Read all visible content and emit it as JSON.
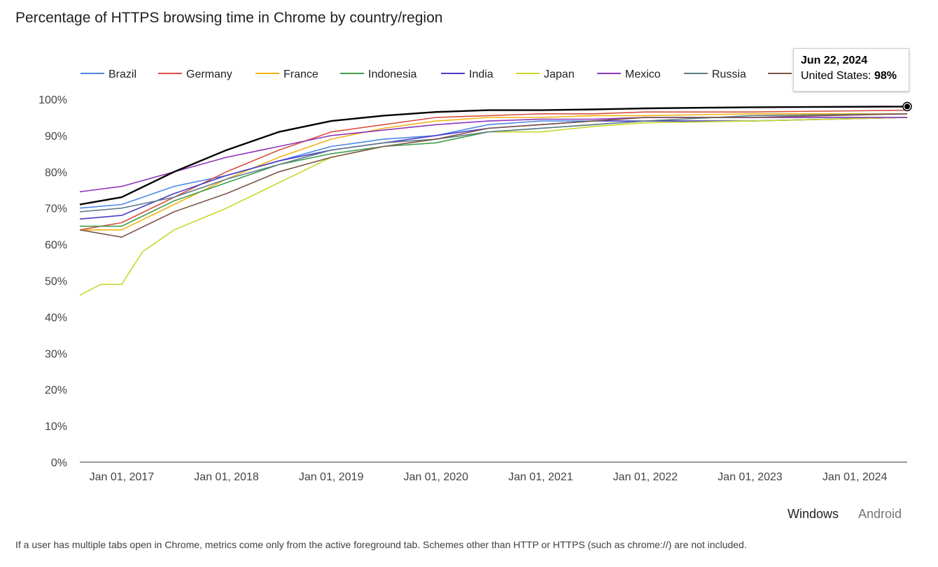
{
  "title": "Percentage of HTTPS browsing time in Chrome by country/region",
  "tooltip": {
    "date": "Jun 22, 2024",
    "label": "United States:",
    "value": "98%"
  },
  "toggle": {
    "windows": "Windows",
    "android": "Android",
    "selected": "Windows"
  },
  "footnote": "If a user has multiple tabs open in Chrome, metrics come only from the active foreground tab. Schemes other than HTTP or HTTPS (such as chrome://) are not included.",
  "chart_data": {
    "type": "line",
    "ylim": [
      0,
      100
    ],
    "yticks": [
      0,
      10,
      20,
      30,
      40,
      50,
      60,
      70,
      80,
      90,
      100
    ],
    "ytick_labels": [
      "0%",
      "10%",
      "20%",
      "30%",
      "40%",
      "50%",
      "60%",
      "70%",
      "80%",
      "90%",
      "100%"
    ],
    "xlim": [
      2016.6,
      2024.5
    ],
    "xticks": [
      2017,
      2018,
      2019,
      2020,
      2021,
      2022,
      2023,
      2024
    ],
    "xtick_labels": [
      "Jan 01, 2017",
      "Jan 01, 2018",
      "Jan 01, 2019",
      "Jan 01, 2020",
      "Jan 01, 2021",
      "Jan 01, 2022",
      "Jan 01, 2023",
      "Jan 01, 2024"
    ],
    "legend_position": "top",
    "grid": false,
    "series": [
      {
        "name": "Brazil",
        "color": "#4e87e6",
        "x": [
          2016.6,
          2017.0,
          2017.5,
          2018.0,
          2018.5,
          2019.0,
          2019.5,
          2020.0,
          2020.5,
          2021.0,
          2021.5,
          2022.0,
          2023.0,
          2024.5
        ],
        "y": [
          70,
          71,
          76,
          79,
          83,
          87,
          89,
          90,
          93,
          94,
          94,
          95,
          95,
          95
        ]
      },
      {
        "name": "Germany",
        "color": "#d9503f",
        "x": [
          2016.6,
          2017.0,
          2017.5,
          2018.0,
          2018.5,
          2019.0,
          2019.5,
          2020.0,
          2020.5,
          2021.0,
          2021.5,
          2022.0,
          2023.0,
          2024.5
        ],
        "y": [
          64,
          66,
          73,
          80,
          86,
          91,
          93,
          95,
          95.5,
          96,
          96,
          96.5,
          96.5,
          97
        ]
      },
      {
        "name": "France",
        "color": "#f2b213",
        "x": [
          2016.6,
          2017.0,
          2017.5,
          2018.0,
          2018.5,
          2019.0,
          2019.5,
          2020.0,
          2020.5,
          2021.0,
          2021.5,
          2022.0,
          2023.0,
          2024.5
        ],
        "y": [
          64,
          64,
          71,
          78,
          84,
          89,
          92,
          94,
          95,
          95,
          95.5,
          95.5,
          96,
          96
        ]
      },
      {
        "name": "Indonesia",
        "color": "#3e9c4f",
        "x": [
          2016.6,
          2017.0,
          2017.5,
          2018.0,
          2018.5,
          2019.0,
          2019.5,
          2020.0,
          2020.5,
          2021.0,
          2021.5,
          2022.0,
          2023.0,
          2024.5
        ],
        "y": [
          65,
          65,
          72,
          77,
          82,
          85,
          87,
          88,
          91,
          92,
          93,
          94,
          94,
          95
        ]
      },
      {
        "name": "India",
        "color": "#4a3cc8",
        "x": [
          2016.6,
          2017.0,
          2017.5,
          2018.0,
          2018.5,
          2019.0,
          2019.5,
          2020.0,
          2020.5,
          2021.0,
          2021.5,
          2022.0,
          2023.0,
          2024.5
        ],
        "y": [
          67,
          68,
          74,
          79,
          83,
          86,
          88,
          90,
          92,
          93,
          94,
          94,
          94,
          95
        ]
      },
      {
        "name": "Japan",
        "color": "#c9d82c",
        "x": [
          2016.6,
          2016.8,
          2017.0,
          2017.2,
          2017.5,
          2018.0,
          2018.5,
          2019.0,
          2019.5,
          2020.0,
          2020.5,
          2021.0,
          2021.5,
          2022.0,
          2023.0,
          2024.5
        ],
        "y": [
          46,
          49,
          49,
          58,
          64,
          70,
          77,
          84,
          87,
          89,
          91,
          91,
          92.5,
          93.5,
          94,
          95
        ]
      },
      {
        "name": "Mexico",
        "color": "#8e36b9",
        "x": [
          2016.6,
          2017.0,
          2017.5,
          2018.0,
          2018.5,
          2019.0,
          2019.5,
          2020.0,
          2020.5,
          2021.0,
          2021.5,
          2022.0,
          2023.0,
          2024.5
        ],
        "y": [
          74.5,
          76,
          80,
          84,
          87,
          90,
          91.5,
          93,
          94,
          94.5,
          94.5,
          95,
          95,
          95
        ]
      },
      {
        "name": "Russia",
        "color": "#607d8b",
        "x": [
          2016.6,
          2017.0,
          2017.5,
          2018.0,
          2018.5,
          2019.0,
          2019.5,
          2020.0,
          2020.5,
          2021.0,
          2021.5,
          2022.0,
          2023.0,
          2024.5
        ],
        "y": [
          69,
          70,
          73,
          78,
          82,
          86,
          88,
          89,
          91,
          92,
          93,
          94,
          95.5,
          96
        ]
      },
      {
        "name": "",
        "color": "#795548",
        "x": [
          2016.6,
          2017.0,
          2017.5,
          2018.0,
          2018.5,
          2019.0,
          2019.5,
          2020.0,
          2020.5,
          2021.0,
          2021.5,
          2022.0,
          2023.0,
          2024.5
        ],
        "y": [
          64,
          62,
          69,
          74,
          80,
          84,
          87,
          89,
          92,
          93,
          94,
          95,
          95,
          96
        ]
      },
      {
        "name": "",
        "color": "#000000",
        "x": [
          2016.6,
          2017.0,
          2017.5,
          2018.0,
          2018.5,
          2019.0,
          2019.5,
          2020.0,
          2020.5,
          2021.0,
          2021.5,
          2022.0,
          2023.0,
          2024.5
        ],
        "y": [
          71,
          73,
          80,
          86,
          91,
          94,
          95.5,
          96.5,
          97,
          97,
          97.2,
          97.5,
          97.8,
          98
        ]
      }
    ]
  }
}
